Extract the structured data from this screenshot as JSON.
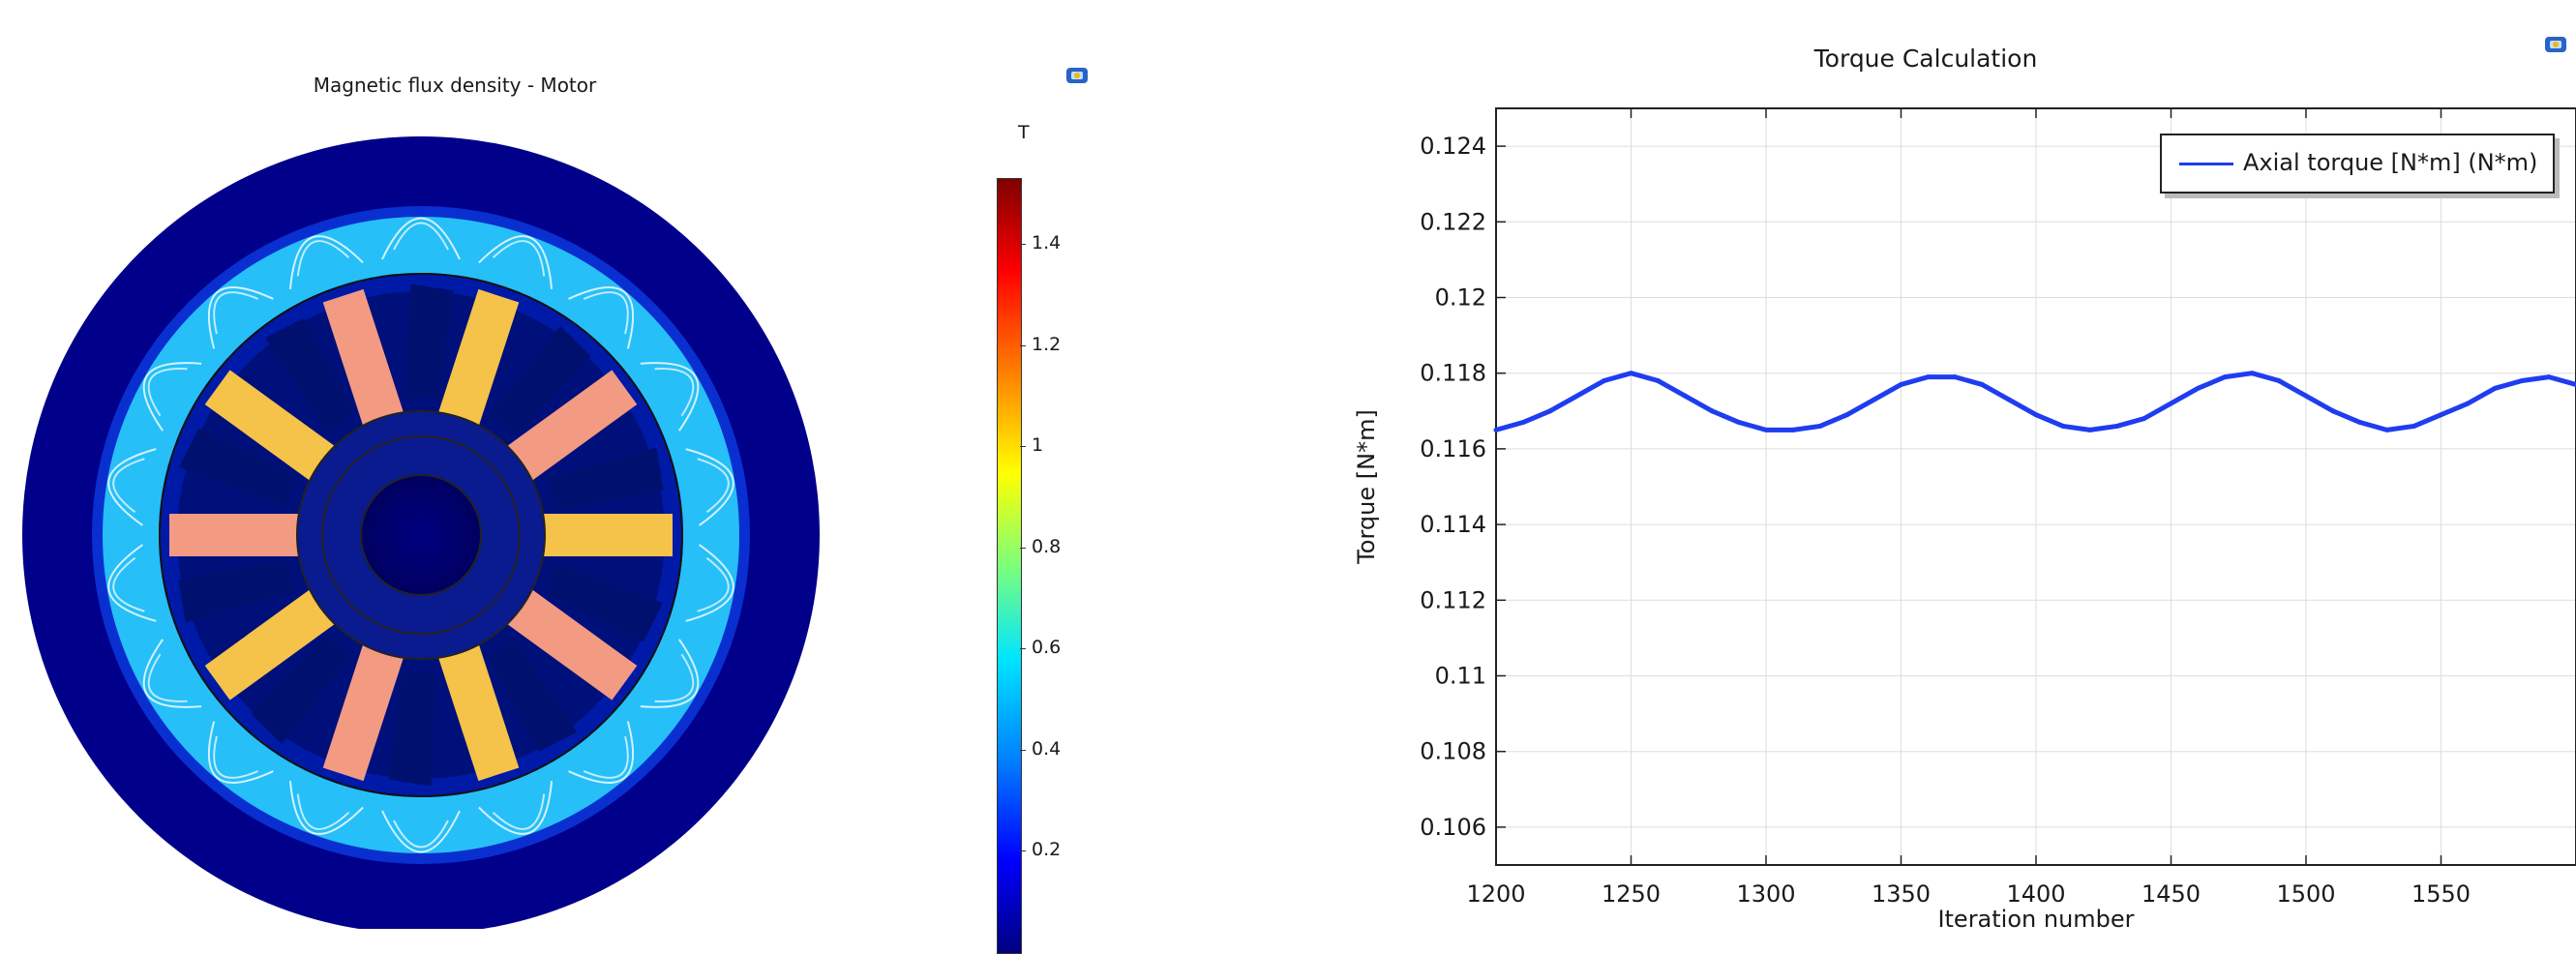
{
  "motor_plot": {
    "title": "Magnetic flux density - Motor",
    "unit": "T",
    "colorbar_ticks": [
      "1.4",
      "1.2",
      "1",
      "0.8",
      "0.6",
      "0.4",
      "0.2"
    ],
    "colormap": [
      "#00007f",
      "#0000ff",
      "#0080ff",
      "#00e5ff",
      "#7dff7a",
      "#ffff00",
      "#ff8000",
      "#ff0000",
      "#7f0000"
    ]
  },
  "torque_plot": {
    "title": "Torque Calculation",
    "legend_label": "Axial torque [N*m] (N*m)"
  },
  "chart_data": {
    "type": "line",
    "title": "Torque Calculation",
    "xlabel": "Iteration number",
    "ylabel": "Torque [N*m]",
    "xlim": [
      1200,
      1600
    ],
    "ylim": [
      0.105,
      0.125
    ],
    "xticks": [
      1200,
      1250,
      1300,
      1350,
      1400,
      1450,
      1500,
      1550
    ],
    "yticks": [
      0.106,
      0.108,
      0.11,
      0.112,
      0.114,
      0.116,
      0.118,
      0.12,
      0.122,
      0.124
    ],
    "xtick_labels": [
      "1200",
      "1250",
      "1300",
      "1350",
      "1400",
      "1450",
      "1500",
      "1550"
    ],
    "ytick_labels": [
      "0.106",
      "0.108",
      "0.11",
      "0.112",
      "0.114",
      "0.116",
      "0.118",
      "0.12",
      "0.122",
      "0.124"
    ],
    "grid": true,
    "legend_position": "top-right",
    "series": [
      {
        "name": "Axial torque [N*m] (N*m)",
        "color": "#1f3df0",
        "x": [
          1200,
          1210,
          1220,
          1230,
          1240,
          1250,
          1260,
          1270,
          1280,
          1290,
          1300,
          1310,
          1320,
          1330,
          1340,
          1350,
          1360,
          1370,
          1380,
          1390,
          1400,
          1410,
          1420,
          1430,
          1440,
          1450,
          1460,
          1470,
          1480,
          1490,
          1500,
          1510,
          1520,
          1530,
          1540,
          1550,
          1560,
          1570,
          1580,
          1590,
          1600
        ],
        "y": [
          0.1165,
          0.1167,
          0.117,
          0.1174,
          0.1178,
          0.118,
          0.1178,
          0.1174,
          0.117,
          0.1167,
          0.1165,
          0.1165,
          0.1166,
          0.1169,
          0.1173,
          0.1177,
          0.1179,
          0.1179,
          0.1177,
          0.1173,
          0.1169,
          0.1166,
          0.1165,
          0.1166,
          0.1168,
          0.1172,
          0.1176,
          0.1179,
          0.118,
          0.1178,
          0.1174,
          0.117,
          0.1167,
          0.1165,
          0.1166,
          0.1169,
          0.1172,
          0.1176,
          0.1178,
          0.1179,
          0.1177
        ]
      }
    ]
  }
}
